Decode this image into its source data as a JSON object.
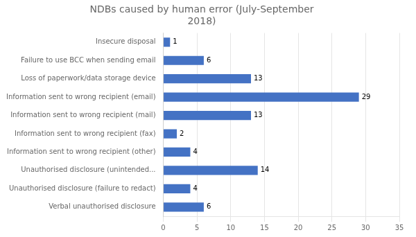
{
  "chart_data": {
    "type": "bar",
    "orientation": "horizontal",
    "title": "NDBs caused by human error (July-September\n2018)",
    "categories": [
      "Verbal unauthorised disclosure",
      "Unauthorised disclosure (failure to redact)",
      "Unauthorised disclosure (unintended...",
      "Information sent to wrong recipient (other)",
      "Information sent to wrong recipient (fax)",
      "Information sent to wrong recipient (mail)",
      "Information sent to wrong recipient (email)",
      "Loss of paperwork/data storage device",
      "Failure to use BCC when sending email",
      "Insecure disposal"
    ],
    "values": [
      6,
      4,
      14,
      4,
      2,
      13,
      29,
      13,
      6,
      1
    ],
    "color": "#4472c4",
    "xlim": [
      0,
      35
    ],
    "xticks": [
      0,
      5,
      10,
      15,
      20,
      25,
      30,
      35
    ],
    "grid": true,
    "data_labels": true
  }
}
